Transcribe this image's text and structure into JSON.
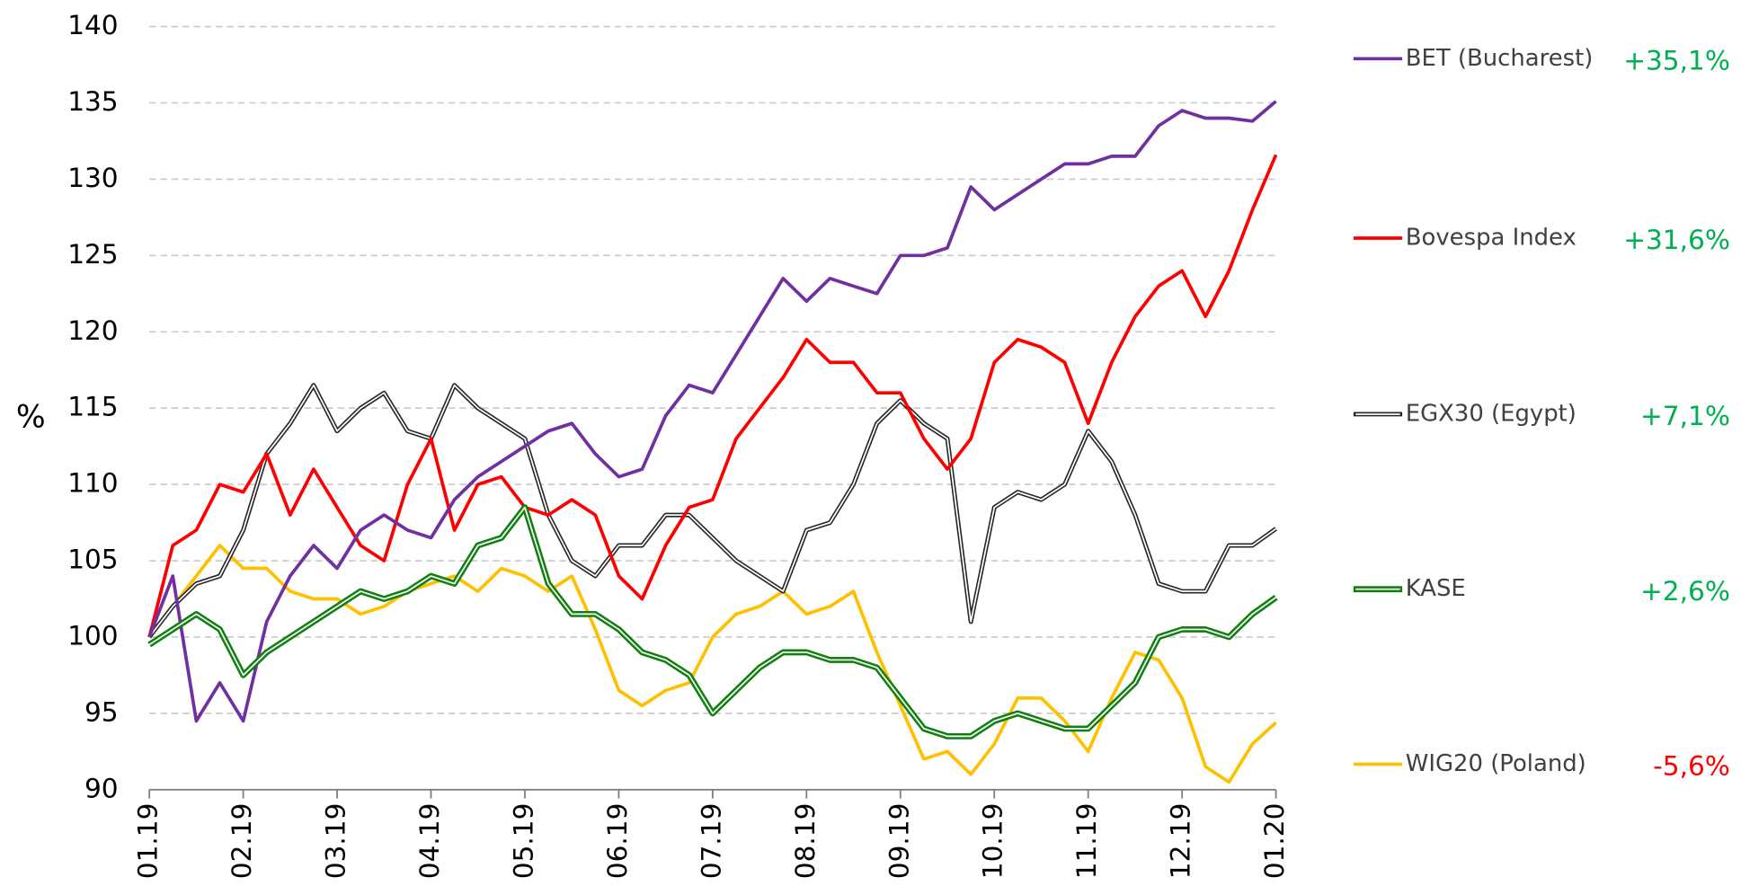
{
  "chart_data": {
    "type": "line",
    "y_label": "%",
    "x": [
      0,
      0.25,
      0.5,
      0.75,
      1,
      1.25,
      1.5,
      1.75,
      2,
      2.25,
      2.5,
      2.75,
      3,
      3.25,
      3.5,
      3.75,
      4,
      4.25,
      4.5,
      4.75,
      5,
      5.25,
      5.5,
      5.75,
      6,
      6.25,
      6.5,
      6.75,
      7,
      7.25,
      7.5,
      7.75,
      8,
      8.25,
      8.5,
      8.75,
      9,
      9.25,
      9.5,
      9.75,
      10,
      10.25,
      10.5,
      10.75,
      11,
      11.25,
      11.5,
      11.75,
      12
    ],
    "xlim": [
      0,
      12
    ],
    "xticks": [
      {
        "value": 0,
        "label": "01.19"
      },
      {
        "value": 1,
        "label": "02.19"
      },
      {
        "value": 2,
        "label": "03.19"
      },
      {
        "value": 3,
        "label": "04.19"
      },
      {
        "value": 4,
        "label": "05.19"
      },
      {
        "value": 5,
        "label": "06.19"
      },
      {
        "value": 6,
        "label": "07.19"
      },
      {
        "value": 7,
        "label": "08.19"
      },
      {
        "value": 8,
        "label": "09.19"
      },
      {
        "value": 9,
        "label": "10.19"
      },
      {
        "value": 10,
        "label": "11.19"
      },
      {
        "value": 11,
        "label": "12.19"
      },
      {
        "value": 12,
        "label": "01.20"
      }
    ],
    "ylim": [
      90,
      140
    ],
    "yticks": [
      90,
      95,
      100,
      105,
      110,
      115,
      120,
      125,
      130,
      135,
      140
    ],
    "grid": true,
    "series": [
      {
        "name": "BET (Bucharest)",
        "color": "#7030a0",
        "change": "+35,1%",
        "change_color": "#00b050",
        "double": false,
        "values": [
          100,
          104,
          94.5,
          97,
          94.5,
          101,
          104,
          106,
          104.5,
          107,
          108,
          107,
          106.5,
          109,
          110.5,
          111.5,
          112.5,
          113.5,
          114,
          112,
          110.5,
          111,
          114.5,
          116.5,
          116,
          118.5,
          121,
          123.5,
          122,
          123.5,
          123,
          122.5,
          125,
          125,
          125.5,
          129.5,
          128,
          129,
          130,
          131,
          131,
          131.5,
          131.5,
          133.5,
          134.5,
          134,
          134,
          133.8,
          135.1
        ]
      },
      {
        "name": "Bovespa Index",
        "color": "#ff0000",
        "change": "+31,6%",
        "change_color": "#00b050",
        "double": false,
        "values": [
          100,
          106,
          107,
          110,
          109.5,
          112,
          108,
          111,
          108.5,
          106,
          105,
          110,
          113,
          107,
          110,
          110.5,
          108.5,
          108,
          109,
          108,
          104,
          102.5,
          106,
          108.5,
          109,
          113,
          115,
          117,
          119.5,
          118,
          118,
          116,
          116,
          113,
          111,
          113,
          118,
          119.5,
          119,
          118,
          114,
          118,
          121,
          123,
          124,
          121,
          124,
          128,
          131.6
        ]
      },
      {
        "name": "EGX30 (Egypt)",
        "color": "#262626",
        "change": "+7,1%",
        "change_color": "#00b050",
        "double": true,
        "values": [
          100,
          102,
          103.5,
          104,
          107,
          112,
          114,
          116.5,
          113.5,
          115,
          116,
          113.5,
          113,
          116.5,
          115,
          114,
          113,
          108,
          105,
          104,
          106,
          106,
          108,
          108,
          106.5,
          105,
          104,
          103,
          107,
          107.5,
          110,
          114,
          115.5,
          114,
          113,
          101,
          108.5,
          109.5,
          109,
          110,
          113.5,
          111.5,
          108,
          103.5,
          103,
          103,
          106,
          106,
          107.1
        ]
      },
      {
        "name": "KASE",
        "color": "#118011",
        "change": "+2,6%",
        "change_color": "#00b050",
        "double": true,
        "values": [
          99.5,
          100.5,
          101.5,
          100.5,
          97.5,
          99,
          100,
          101,
          102,
          103,
          102.5,
          103,
          104,
          103.5,
          106,
          106.5,
          108.5,
          103.5,
          101.5,
          101.5,
          100.5,
          99,
          98.5,
          97.5,
          95,
          96.5,
          98,
          99,
          99,
          98.5,
          98.5,
          98,
          96,
          94,
          93.5,
          93.5,
          94.5,
          95,
          94.5,
          94,
          94,
          95.5,
          97,
          100,
          100.5,
          100.5,
          100,
          101.5,
          102.6
        ]
      },
      {
        "name": "WIG20 (Poland)",
        "color": "#ffc000",
        "change": "-5,6%",
        "change_color": "#ff0000",
        "double": false,
        "values": [
          100,
          102,
          104,
          106,
          104.5,
          104.5,
          103,
          102.5,
          102.5,
          101.5,
          102,
          103,
          103.5,
          104,
          103,
          104.5,
          104,
          103,
          104,
          100.5,
          96.5,
          95.5,
          96.5,
          97,
          100,
          101.5,
          102,
          103,
          101.5,
          102,
          103,
          99,
          95.5,
          92,
          92.5,
          91,
          93,
          96,
          96,
          94.5,
          92.5,
          96,
          99,
          98.5,
          96,
          91.5,
          90.5,
          93,
          94.4
        ]
      }
    ]
  }
}
